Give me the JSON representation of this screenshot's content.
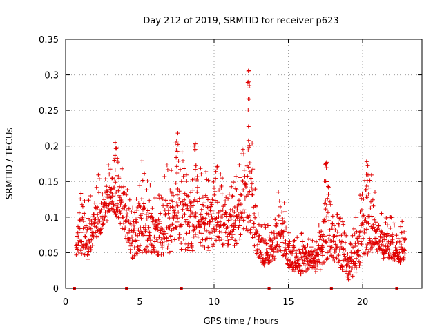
{
  "chart_data": {
    "type": "scatter",
    "title": "Day 212 of 2019, SRMTID for receiver p623",
    "xlabel": "GPS time / hours",
    "ylabel": "SRMTID / TECUs",
    "xlim": [
      0,
      24
    ],
    "ylim": [
      0,
      0.35
    ],
    "xticks": [
      0,
      5,
      10,
      15,
      20
    ],
    "xtick_labels": [
      "0",
      "5",
      "10",
      "15",
      "20"
    ],
    "yticks": [
      0,
      0.05,
      0.1,
      0.15,
      0.2,
      0.25,
      0.3,
      0.35
    ],
    "ytick_labels": [
      "0",
      "0.05",
      "0.1",
      "0.15",
      "0.2",
      "0.25",
      "0.3",
      "0.35"
    ],
    "grid": true,
    "marker": "+",
    "color": "#e00000",
    "legend": "none",
    "series": [
      {
        "name": "SRMTID",
        "envelope": [
          [
            0.7,
            0.04,
            0.1
          ],
          [
            1.0,
            0.05,
            0.14
          ],
          [
            1.5,
            0.04,
            0.12
          ],
          [
            2.0,
            0.07,
            0.16
          ],
          [
            2.5,
            0.08,
            0.16
          ],
          [
            3.0,
            0.1,
            0.18
          ],
          [
            3.5,
            0.1,
            0.21
          ],
          [
            4.0,
            0.07,
            0.15
          ],
          [
            4.5,
            0.04,
            0.12
          ],
          [
            5.0,
            0.05,
            0.19
          ],
          [
            5.5,
            0.05,
            0.16
          ],
          [
            6.0,
            0.05,
            0.13
          ],
          [
            6.5,
            0.04,
            0.14
          ],
          [
            7.0,
            0.05,
            0.2
          ],
          [
            7.5,
            0.06,
            0.22
          ],
          [
            8.0,
            0.05,
            0.2
          ],
          [
            8.5,
            0.05,
            0.17
          ],
          [
            9.0,
            0.06,
            0.2
          ],
          [
            9.5,
            0.05,
            0.16
          ],
          [
            10.0,
            0.06,
            0.18
          ],
          [
            10.5,
            0.06,
            0.16
          ],
          [
            11.0,
            0.06,
            0.14
          ],
          [
            11.5,
            0.06,
            0.16
          ],
          [
            12.0,
            0.08,
            0.22
          ],
          [
            12.3,
            0.08,
            0.31
          ],
          [
            12.7,
            0.06,
            0.16
          ],
          [
            13.0,
            0.04,
            0.1
          ],
          [
            13.5,
            0.03,
            0.09
          ],
          [
            14.0,
            0.04,
            0.1
          ],
          [
            14.5,
            0.05,
            0.16
          ],
          [
            15.0,
            0.03,
            0.09
          ],
          [
            15.5,
            0.02,
            0.07
          ],
          [
            16.0,
            0.02,
            0.08
          ],
          [
            16.5,
            0.03,
            0.09
          ],
          [
            17.0,
            0.02,
            0.08
          ],
          [
            17.5,
            0.04,
            0.17
          ],
          [
            18.0,
            0.04,
            0.13
          ],
          [
            18.5,
            0.03,
            0.1
          ],
          [
            19.0,
            0.01,
            0.08
          ],
          [
            19.5,
            0.02,
            0.09
          ],
          [
            20.0,
            0.04,
            0.18
          ],
          [
            20.5,
            0.05,
            0.17
          ],
          [
            21.0,
            0.05,
            0.12
          ],
          [
            21.5,
            0.04,
            0.1
          ],
          [
            22.0,
            0.04,
            0.1
          ],
          [
            22.5,
            0.03,
            0.09
          ],
          [
            22.9,
            0.04,
            0.12
          ]
        ],
        "peaks": [
          [
            3.35,
            0.205
          ],
          [
            7.5,
            0.218
          ],
          [
            8.7,
            0.203
          ],
          [
            12.3,
            0.306
          ],
          [
            12.35,
            0.285
          ],
          [
            17.55,
            0.177
          ],
          [
            20.3,
            0.178
          ]
        ],
        "approx_points_per_hour": 70
      },
      {
        "name": "receiver gaps / markers at zero",
        "x": [
          0.6,
          4.1,
          7.8,
          13.7,
          17.9,
          22.3
        ],
        "y": [
          0,
          0,
          0,
          0,
          0,
          0
        ]
      }
    ]
  }
}
